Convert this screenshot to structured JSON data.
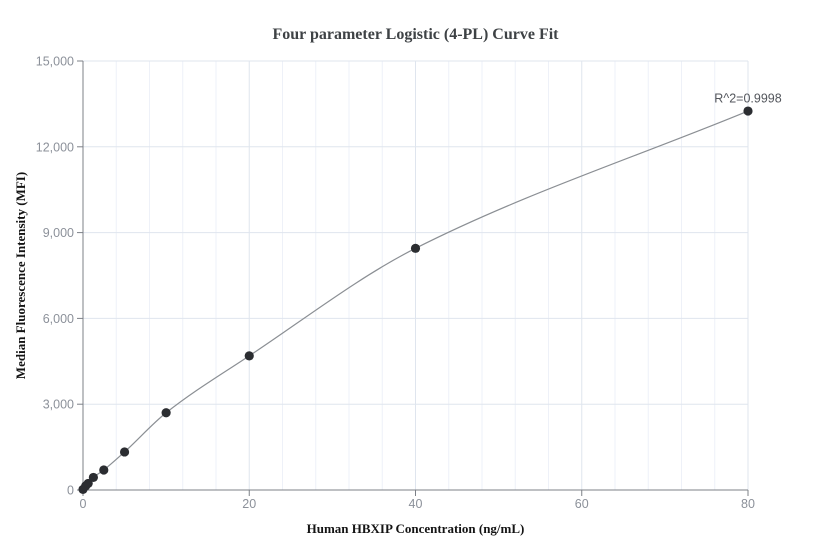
{
  "chart_data": {
    "type": "scatter",
    "title": "Four parameter Logistic (4-PL) Curve Fit",
    "xlabel": "Human HBXIP Concentration (ng/mL)",
    "ylabel": "Median Fluorescence Intensity (MFI)",
    "annotation": "R^2=0.9998",
    "curve_type": "4PL fit line through points",
    "legend": "none",
    "grid": "on",
    "x": [
      0,
      0.3125,
      0.625,
      1.25,
      2.5,
      5,
      10,
      20,
      40,
      80
    ],
    "y": [
      20,
      140,
      230,
      440,
      700,
      1330,
      2700,
      4690,
      8450,
      13250
    ],
    "xlim": [
      0,
      80
    ],
    "ylim": [
      0,
      15000
    ],
    "x_ticks": [
      0,
      20,
      40,
      60,
      80
    ],
    "x_tick_labels": [
      "0",
      "20",
      "40",
      "60",
      "80"
    ],
    "y_ticks": [
      0,
      3000,
      6000,
      9000,
      12000,
      15000
    ],
    "y_tick_labels": [
      "0",
      "3,000",
      "6,000",
      "9,000",
      "12,000",
      "15,000"
    ],
    "x_minor_grid_step": 4,
    "colors": {
      "background": "#ffffff",
      "point": "#2b2d31",
      "curve": "#8b8f94",
      "axis": "#7c8087",
      "tick_label": "#8c919a",
      "grid_major": "#dfe5ee",
      "grid_minor": "#eef1f8",
      "title": "#3e4245",
      "axis_label": "#141414",
      "annotation": "#53565c"
    }
  }
}
